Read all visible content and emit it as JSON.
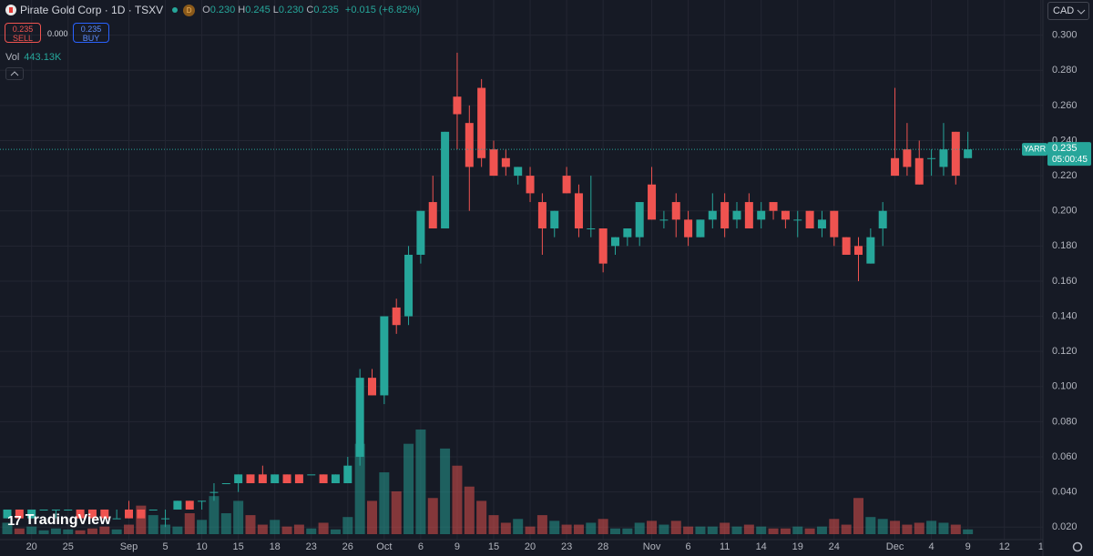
{
  "chart_data": {
    "type": "candlestick",
    "title": "Pirate Gold Corp · 1D · TSXV",
    "interval": "D",
    "ohlc": [
      {
        "key": "O",
        "value": "0.230"
      },
      {
        "key": "H",
        "value": "0.245"
      },
      {
        "key": "L",
        "value": "0.230"
      },
      {
        "key": "C",
        "value": "0.235"
      }
    ],
    "change": "+0.015 (+6.82%)",
    "sell": {
      "price": "0.235",
      "label": "SELL"
    },
    "spread": "0.000",
    "buy": {
      "price": "0.235",
      "label": "BUY"
    },
    "volume_label": "Vol",
    "volume_last_label": "443.13K",
    "currency": "CAD",
    "symbol": "YARR",
    "last_price": {
      "value": 0.235,
      "label": "0.235"
    },
    "countdown": "05:00:45",
    "brand": "TradingView",
    "up_color": "#26a69a",
    "down_color": "#ef5350",
    "grid": true,
    "ylim": [
      0.016,
      0.32
    ],
    "yticks": [
      {
        "value": 0.02,
        "label": "0.020"
      },
      {
        "value": 0.04,
        "label": "0.040"
      },
      {
        "value": 0.06,
        "label": "0.060"
      },
      {
        "value": 0.08,
        "label": "0.080"
      },
      {
        "value": 0.1,
        "label": "0.100"
      },
      {
        "value": 0.12,
        "label": "0.120"
      },
      {
        "value": 0.14,
        "label": "0.140"
      },
      {
        "value": 0.16,
        "label": "0.160"
      },
      {
        "value": 0.18,
        "label": "0.180"
      },
      {
        "value": 0.2,
        "label": "0.200"
      },
      {
        "value": 0.22,
        "label": "0.220"
      },
      {
        "value": 0.24,
        "label": "0.240"
      },
      {
        "value": 0.26,
        "label": "0.260"
      },
      {
        "value": 0.28,
        "label": "0.280"
      },
      {
        "value": 0.3,
        "label": "0.300"
      }
    ],
    "categories": [
      null,
      null,
      "20",
      null,
      null,
      "25",
      null,
      null,
      null,
      null,
      "Sep",
      null,
      null,
      "5",
      null,
      null,
      "10",
      null,
      null,
      "15",
      null,
      null,
      "18",
      null,
      null,
      "23",
      null,
      null,
      "26",
      null,
      null,
      "Oct",
      null,
      null,
      "6",
      null,
      null,
      "9",
      null,
      null,
      "15",
      null,
      null,
      "20",
      null,
      null,
      "23",
      null,
      null,
      "28",
      null,
      null,
      null,
      "Nov",
      null,
      null,
      "6",
      null,
      null,
      "11",
      null,
      null,
      "14",
      null,
      null,
      "19",
      null,
      null,
      "24",
      null,
      null,
      null,
      null,
      "Dec",
      null,
      null,
      "4",
      null,
      null,
      "9",
      null,
      null,
      "12",
      null,
      null,
      "1",
      null
    ],
    "open": [
      0.025,
      0.03,
      0.025,
      0.03,
      0.03,
      0.03,
      0.03,
      0.03,
      0.03,
      0.025,
      0.03,
      0.03,
      0.03,
      0.025,
      0.03,
      0.035,
      0.035,
      0.04,
      0.045,
      0.045,
      0.05,
      0.05,
      0.045,
      0.05,
      0.05,
      0.05,
      0.05,
      0.045,
      0.045,
      0.06,
      0.105,
      0.095,
      0.145,
      0.14,
      0.175,
      0.205,
      0.19,
      0.265,
      0.25,
      0.27,
      0.235,
      0.23,
      0.22,
      0.22,
      0.205,
      0.19,
      0.22,
      0.21,
      0.19,
      0.19,
      0.18,
      0.185,
      0.185,
      0.215,
      0.195,
      0.205,
      0.195,
      0.185,
      0.195,
      0.205,
      0.195,
      0.205,
      0.195,
      0.205,
      0.2,
      0.195,
      0.2,
      0.19,
      0.2,
      0.185,
      0.18,
      0.17,
      0.19,
      0.23,
      0.235,
      0.23,
      0.23,
      0.225,
      0.245,
      0.23,
      null,
      null,
      null,
      null,
      null,
      null,
      null
    ],
    "high": [
      0.03,
      0.03,
      0.03,
      0.03,
      0.03,
      0.03,
      0.03,
      0.03,
      0.03,
      0.03,
      0.035,
      0.03,
      0.03,
      0.03,
      0.035,
      0.035,
      0.035,
      0.045,
      0.045,
      0.05,
      0.05,
      0.055,
      0.05,
      0.05,
      0.05,
      0.05,
      0.05,
      0.05,
      0.06,
      0.11,
      0.11,
      0.14,
      0.15,
      0.18,
      0.2,
      0.22,
      0.245,
      0.29,
      0.26,
      0.275,
      0.24,
      0.235,
      0.225,
      0.225,
      0.21,
      0.2,
      0.225,
      0.215,
      0.22,
      0.19,
      0.185,
      0.19,
      0.205,
      0.225,
      0.2,
      0.21,
      0.2,
      0.195,
      0.21,
      0.21,
      0.205,
      0.21,
      0.205,
      0.205,
      0.2,
      0.2,
      0.2,
      0.2,
      0.2,
      0.185,
      0.185,
      0.19,
      0.205,
      0.27,
      0.25,
      0.24,
      0.235,
      0.25,
      0.245,
      0.245,
      null,
      null,
      null,
      null,
      null,
      null,
      null
    ],
    "low": [
      0.025,
      0.025,
      0.025,
      0.03,
      0.025,
      0.03,
      0.025,
      0.025,
      0.025,
      0.025,
      0.025,
      0.025,
      0.03,
      0.02,
      0.03,
      0.03,
      0.03,
      0.035,
      0.045,
      0.04,
      0.045,
      0.045,
      0.045,
      0.045,
      0.045,
      0.05,
      0.045,
      0.045,
      0.045,
      0.055,
      0.095,
      0.09,
      0.13,
      0.135,
      0.17,
      0.19,
      0.19,
      0.235,
      0.2,
      0.225,
      0.22,
      0.22,
      0.215,
      0.205,
      0.175,
      0.185,
      0.21,
      0.185,
      0.185,
      0.165,
      0.175,
      0.18,
      0.18,
      0.195,
      0.19,
      0.185,
      0.18,
      0.185,
      0.19,
      0.185,
      0.19,
      0.19,
      0.19,
      0.195,
      0.19,
      0.185,
      0.19,
      0.185,
      0.18,
      0.175,
      0.16,
      0.17,
      0.18,
      0.22,
      0.22,
      0.215,
      0.22,
      0.22,
      0.215,
      0.23,
      null,
      null,
      null,
      null,
      null,
      null,
      null
    ],
    "close": [
      0.03,
      0.025,
      0.03,
      0.03,
      0.03,
      0.03,
      0.025,
      0.025,
      0.025,
      0.025,
      0.025,
      0.025,
      0.03,
      0.025,
      0.035,
      0.03,
      0.035,
      0.04,
      0.045,
      0.05,
      0.045,
      0.045,
      0.05,
      0.045,
      0.045,
      0.05,
      0.045,
      0.05,
      0.055,
      0.105,
      0.095,
      0.14,
      0.135,
      0.175,
      0.2,
      0.19,
      0.245,
      0.255,
      0.225,
      0.23,
      0.22,
      0.225,
      0.225,
      0.21,
      0.19,
      0.2,
      0.21,
      0.19,
      0.19,
      0.17,
      0.185,
      0.19,
      0.205,
      0.195,
      0.195,
      0.195,
      0.185,
      0.195,
      0.2,
      0.19,
      0.2,
      0.19,
      0.2,
      0.2,
      0.195,
      0.195,
      0.19,
      0.195,
      0.185,
      0.175,
      0.175,
      0.185,
      0.2,
      0.22,
      0.225,
      0.215,
      0.23,
      0.235,
      0.22,
      0.235,
      null,
      null,
      null,
      null,
      null,
      null,
      null
    ],
    "volume": [
      1063000,
      532000,
      709000,
      354000,
      532000,
      443000,
      354000,
      532000,
      709000,
      443000,
      886000,
      2658000,
      1772000,
      886000,
      709000,
      1949000,
      1329000,
      3544000,
      1949000,
      3101000,
      1772000,
      886000,
      1329000,
      709000,
      886000,
      532000,
      1063000,
      443000,
      1595000,
      8417000,
      3101000,
      5759000,
      3987000,
      8417000,
      9746000,
      3367000,
      7974000,
      6379000,
      4430000,
      3101000,
      1772000,
      1063000,
      1418000,
      709000,
      1772000,
      1240000,
      886000,
      886000,
      1063000,
      1418000,
      532000,
      532000,
      1063000,
      1240000,
      886000,
      1240000,
      709000,
      709000,
      709000,
      1063000,
      709000,
      886000,
      709000,
      532000,
      532000,
      709000,
      532000,
      709000,
      1418000,
      886000,
      3367000,
      1595000,
      1418000,
      1240000,
      886000,
      1063000,
      1240000,
      1063000,
      886000,
      443130,
      null,
      null,
      null,
      null,
      null,
      null,
      null
    ]
  }
}
